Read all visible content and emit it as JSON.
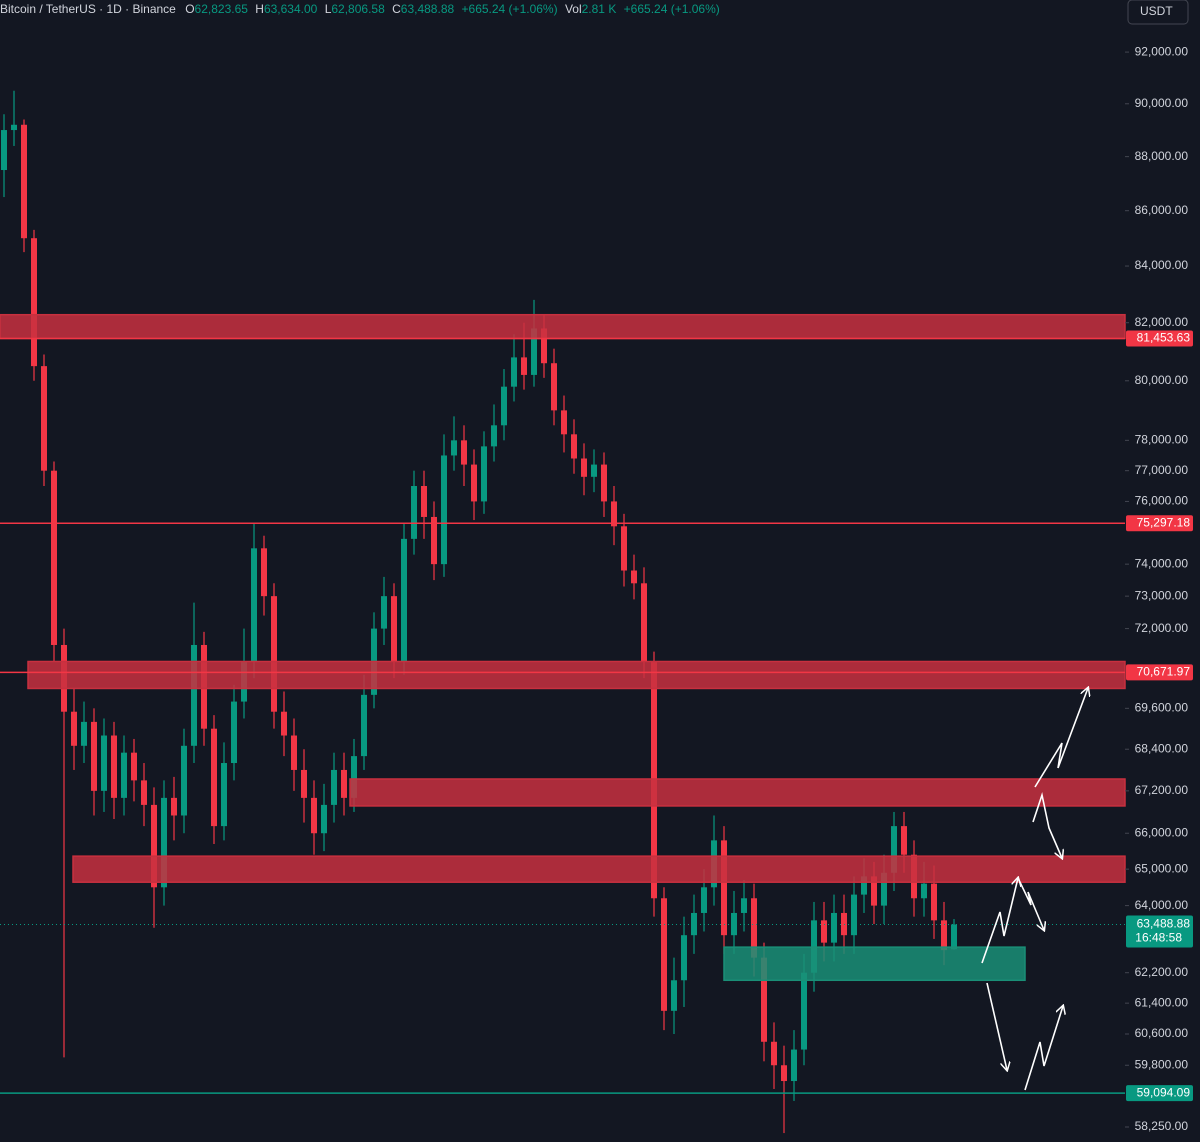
{
  "chart_data": {
    "type": "candlestick",
    "header": {
      "symbol": "Bitcoin / TetherUS · 1D · Binance",
      "fields": [
        {
          "key": "O",
          "text": "62,823.65"
        },
        {
          "key": "H",
          "text": "63,634.00"
        },
        {
          "key": "L",
          "text": "62,806.58"
        },
        {
          "key": "C",
          "text": "63,488.88"
        }
      ],
      "change": "+665.24 (+1.06%)",
      "vol_key": "Vol",
      "vol": "2.81 K",
      "vol_change": "+665.24 (+1.06%)"
    },
    "currency": "USDT",
    "log_scale": true,
    "ylim": [
      57880,
      94060
    ],
    "yticks": [
      {
        "value": 92000,
        "label": "92,000.00"
      },
      {
        "value": 90000,
        "label": "90,000.00"
      },
      {
        "value": 88000,
        "label": "88,000.00"
      },
      {
        "value": 86000,
        "label": "86,000.00"
      },
      {
        "value": 84000,
        "label": "84,000.00"
      },
      {
        "value": 82000,
        "label": "82,000.00"
      },
      {
        "value": 80000,
        "label": "80,000.00"
      },
      {
        "value": 78000,
        "label": "78,000.00"
      },
      {
        "value": 77000,
        "label": "77,000.00"
      },
      {
        "value": 76000,
        "label": "76,000.00"
      },
      {
        "value": 74000,
        "label": "74,000.00"
      },
      {
        "value": 73000,
        "label": "73,000.00"
      },
      {
        "value": 72000,
        "label": "72,000.00"
      },
      {
        "value": 69600,
        "label": "69,600.00"
      },
      {
        "value": 68400,
        "label": "68,400.00"
      },
      {
        "value": 67200,
        "label": "67,200.00"
      },
      {
        "value": 66000,
        "label": "66,000.00"
      },
      {
        "value": 65000,
        "label": "65,000.00"
      },
      {
        "value": 64000,
        "label": "64,000.00"
      },
      {
        "value": 62200,
        "label": "62,200.00"
      },
      {
        "value": 61400,
        "label": "61,400.00"
      },
      {
        "value": 60600,
        "label": "60,600.00"
      },
      {
        "value": 59800,
        "label": "59,800.00"
      },
      {
        "value": 58250,
        "label": "58,250.00"
      }
    ],
    "up_color": "#089981",
    "down_color": "#f23645",
    "candles": {
      "open": [
        87500,
        89000,
        89200,
        85000,
        80500,
        77000,
        71500,
        69500,
        68500,
        69200,
        67200,
        68800,
        67000,
        68300,
        67500,
        66800,
        64500,
        67000,
        66500,
        68500,
        71500,
        69000,
        66200,
        68000,
        69800,
        71000,
        74500,
        73000,
        69500,
        68800,
        67800,
        67000,
        66000,
        66800,
        67800,
        67000,
        68200,
        70000,
        72000,
        73000,
        71000,
        74800,
        76500,
        75500,
        74000,
        77500,
        78000,
        77200,
        76000,
        77800,
        78500,
        79800,
        80800,
        80200,
        81800,
        80600,
        79000,
        78200,
        77400,
        76800,
        77200,
        76000,
        75200,
        73800,
        73400,
        71000,
        64200,
        61200,
        62000,
        63200,
        63800,
        64500,
        65800,
        63200,
        63800,
        64200,
        62600,
        60400,
        59800,
        59400,
        60200,
        62200,
        63600,
        63000,
        63800,
        63200,
        64300,
        64800,
        64000,
        64900,
        66200,
        65400,
        64200,
        64600,
        63600,
        62823.65
      ],
      "high": [
        89600,
        90500,
        89400,
        85300,
        80900,
        77300,
        72000,
        70200,
        69800,
        69600,
        69300,
        69200,
        68800,
        68700,
        68000,
        67300,
        67500,
        67600,
        69000,
        72800,
        71900,
        69400,
        68600,
        70300,
        72000,
        75300,
        74900,
        73400,
        70100,
        69300,
        68400,
        67500,
        67400,
        68300,
        68300,
        68700,
        70600,
        72500,
        73600,
        73400,
        75300,
        77000,
        77000,
        76000,
        78200,
        78800,
        78500,
        77700,
        78300,
        79200,
        80400,
        81600,
        82000,
        82800,
        82300,
        81100,
        79500,
        78700,
        77900,
        77700,
        77600,
        76500,
        75600,
        74300,
        73900,
        71300,
        64500,
        62600,
        63700,
        64300,
        65000,
        66500,
        66200,
        64400,
        64700,
        64600,
        63000,
        60900,
        60300,
        60700,
        62700,
        64100,
        64100,
        64300,
        64300,
        64800,
        65300,
        65200,
        65400,
        66600,
        66600,
        65800,
        65200,
        65100,
        64100,
        63634
      ],
      "low": [
        86500,
        88400,
        84500,
        80000,
        76500,
        71000,
        60000,
        67800,
        68000,
        66500,
        66600,
        66400,
        66500,
        66900,
        66200,
        63400,
        64000,
        65800,
        66000,
        68000,
        68500,
        65700,
        65800,
        67500,
        69300,
        70500,
        72400,
        69000,
        68200,
        67200,
        66300,
        65400,
        65500,
        66300,
        66500,
        66600,
        67800,
        69600,
        71500,
        70500,
        70600,
        74300,
        74800,
        73500,
        73600,
        77000,
        76500,
        75400,
        75600,
        77300,
        78000,
        79300,
        79700,
        79800,
        80100,
        78500,
        77600,
        76900,
        76200,
        76300,
        75500,
        74600,
        73300,
        72900,
        70500,
        63700,
        60700,
        60600,
        61300,
        62700,
        63300,
        64000,
        62700,
        62700,
        63300,
        62100,
        59900,
        59200,
        58100,
        58900,
        59800,
        61700,
        62500,
        62500,
        62700,
        62700,
        63800,
        63500,
        63500,
        64400,
        64900,
        63700,
        63700,
        63100,
        62400,
        62806.58
      ],
      "close": [
        89000,
        89200,
        85000,
        80500,
        77000,
        71500,
        69500,
        68500,
        69200,
        67200,
        68800,
        67000,
        68300,
        67500,
        66800,
        64500,
        67000,
        66500,
        68500,
        71500,
        69000,
        66200,
        68000,
        69800,
        71000,
        74500,
        73000,
        69500,
        68800,
        67800,
        67000,
        66000,
        66800,
        67800,
        67000,
        68200,
        70000,
        72000,
        73000,
        71000,
        74800,
        76500,
        75500,
        74000,
        77500,
        78000,
        77200,
        76000,
        77800,
        78500,
        79800,
        80800,
        80200,
        81800,
        80600,
        79000,
        78200,
        77400,
        76800,
        77200,
        76000,
        75200,
        73800,
        73400,
        71000,
        64200,
        61200,
        62000,
        63200,
        63800,
        64500,
        65800,
        63200,
        63800,
        64200,
        62600,
        60400,
        59800,
        59400,
        60200,
        62200,
        63600,
        63000,
        63800,
        63200,
        64300,
        64800,
        64000,
        64900,
        66200,
        65400,
        64200,
        64600,
        63600,
        62800,
        63488.88
      ]
    },
    "zones": [
      {
        "from": 81453.63,
        "to": 82280,
        "x": [
          -0.4,
          112.1
        ],
        "color": "#c8303f"
      },
      {
        "from": 70190,
        "to": 71000,
        "x": [
          2.4,
          112.1
        ],
        "color": "#c8303f"
      },
      {
        "from": 66770,
        "to": 67540,
        "x": [
          34.6,
          112.1
        ],
        "color": "#c8303f"
      },
      {
        "from": 64640,
        "to": 65360,
        "x": [
          6.9,
          112.1
        ],
        "color": "#c8303f"
      },
      {
        "from": 62000,
        "to": 62880,
        "x": [
          72,
          102.1
        ],
        "color": "#1a8f77"
      }
    ],
    "levels": [
      {
        "value": 81453.63,
        "label": "81,453.63",
        "color": "#f23645"
      },
      {
        "value": 75297.18,
        "label": "75,297.18",
        "color": "#f23645"
      },
      {
        "value": 70671.97,
        "label": "70,671.97",
        "color": "#f23645"
      },
      {
        "value": 59094.09,
        "label": "59,094.09",
        "color": "#089981"
      }
    ],
    "last_price": {
      "value": 63488.88,
      "label": "63,488.88",
      "countdown": "16:48:58",
      "color": "#089981"
    }
  }
}
